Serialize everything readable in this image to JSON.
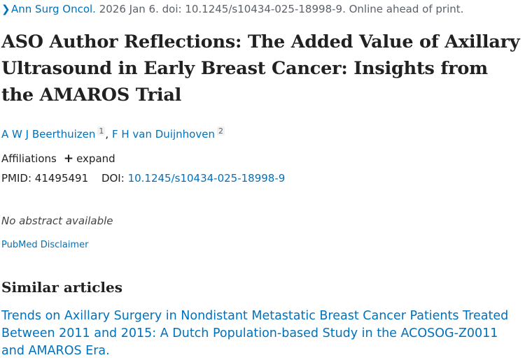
{
  "citation": {
    "chevron": "❯",
    "journal": "Ann Surg Oncol.",
    "details": "2026 Jan 6. doi: 10.1245/s10434-025-18998-9. Online ahead of print."
  },
  "article": {
    "title": "ASO Author Reflections: The Added Value of Axillary Ultrasound in Early Breast Cancer: Insights from the AMAROS Trial",
    "authors": [
      {
        "name": "A W J Beerthuizen",
        "affiliation": "1"
      },
      {
        "name": "F H van Duijnhoven",
        "affiliation": "2"
      }
    ],
    "author_separator": ", ",
    "affiliations_label": "Affiliations",
    "expand_icon": "+",
    "expand_label": "expand",
    "pmid_label": "PMID:",
    "pmid": "41495491",
    "doi_label": "DOI:",
    "doi": "10.1245/s10434-025-18998-9",
    "no_abstract": "No abstract available",
    "disclaimer": "PubMed Disclaimer"
  },
  "similar": {
    "heading": "Similar articles",
    "items": [
      {
        "title": "Trends on Axillary Surgery in Nondistant Metastatic Breast Cancer Patients Treated Between 2011 and 2015: A Dutch Population-based Study in the ACOSOG-Z0011 and AMAROS Era."
      }
    ]
  }
}
